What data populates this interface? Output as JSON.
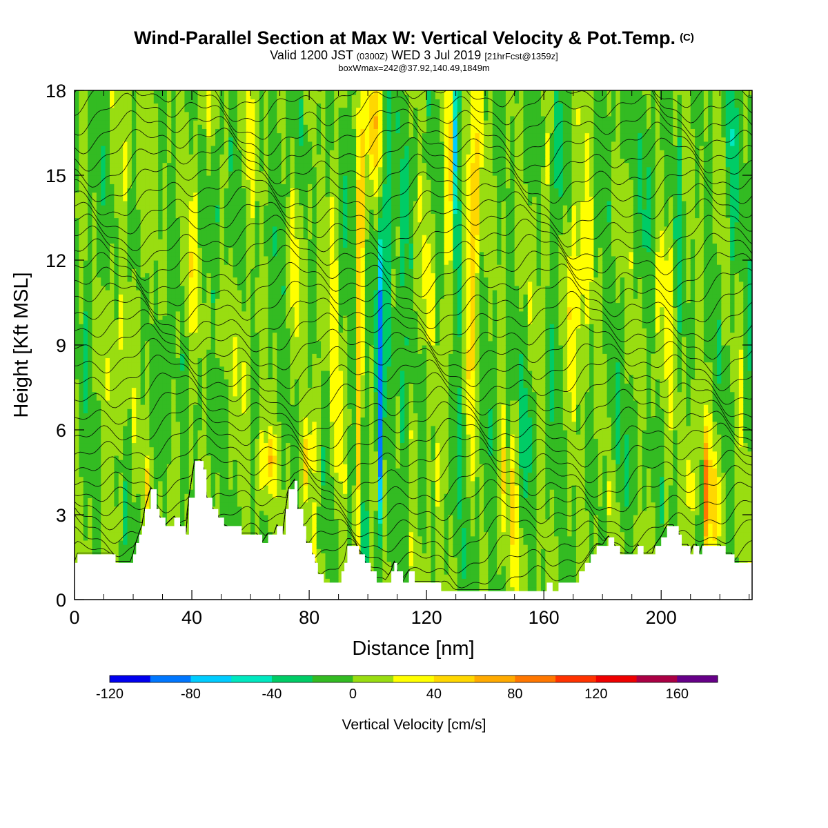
{
  "title": {
    "line1": "Wind-Parallel Section at Max W: Vertical Velocity & Pot.Temp.",
    "copyright_mark": "(C)",
    "line2_a": "Valid 1200 JST",
    "line2_b": "(0300Z)",
    "line2_c": "WED 3 Jul 2019",
    "line2_d": "[21hrFcst@1359z]",
    "line3": "boxWmax=242@37.92,140.49,1849m"
  },
  "chart_data": {
    "type": "heatmap",
    "xlabel": "Distance [nm]",
    "ylabel": "Height [Kft MSL]",
    "xlim": [
      0,
      231
    ],
    "ylim": [
      0,
      18
    ],
    "x_ticks": [
      0,
      40,
      80,
      120,
      160,
      200
    ],
    "y_ticks": [
      0,
      3,
      6,
      9,
      12,
      15,
      18
    ],
    "x_tick_labels": [
      "0",
      "40",
      "80",
      "120",
      "160",
      "200"
    ],
    "y_tick_labels": [
      "0",
      "3",
      "6",
      "9",
      "12",
      "15",
      "18"
    ],
    "value_label": "Vertical Velocity [cm/s]",
    "colorbar": {
      "levels": [
        -120,
        -100,
        -80,
        -60,
        -40,
        -20,
        0,
        20,
        40,
        60,
        80,
        100,
        120,
        140,
        160,
        180
      ],
      "tick_values": [
        -120,
        -80,
        -40,
        0,
        40,
        80,
        120,
        160
      ],
      "tick_labels": [
        "-120",
        "-80",
        "-40",
        "0",
        "40",
        "80",
        "120",
        "160"
      ],
      "colors": [
        "#0000ee",
        "#0077ff",
        "#00ccff",
        "#00e8c0",
        "#00cc66",
        "#33bb22",
        "#99dd11",
        "#ffff00",
        "#ffd700",
        "#ffaa00",
        "#ff7700",
        "#ff3300",
        "#ee0000",
        "#aa0044",
        "#660088"
      ]
    },
    "terrain_kft": [
      [
        0,
        1.3
      ],
      [
        1,
        1.6
      ],
      [
        13,
        1.6
      ],
      [
        14,
        1.3
      ],
      [
        19,
        1.3
      ],
      [
        20,
        1.6
      ],
      [
        21,
        2.0
      ],
      [
        22,
        2.3
      ],
      [
        23,
        2.6
      ],
      [
        24,
        3.2
      ],
      [
        26,
        3.9
      ],
      [
        28,
        3.2
      ],
      [
        29,
        2.9
      ],
      [
        31,
        2.6
      ],
      [
        34,
        2.9
      ],
      [
        36,
        2.6
      ],
      [
        38,
        2.3
      ],
      [
        39,
        3.6
      ],
      [
        41,
        4.9
      ],
      [
        43,
        4.9
      ],
      [
        44,
        4.6
      ],
      [
        45,
        3.6
      ],
      [
        47,
        3.2
      ],
      [
        49,
        2.9
      ],
      [
        51,
        2.6
      ],
      [
        57,
        2.3
      ],
      [
        60,
        2.3
      ],
      [
        62,
        2.3
      ],
      [
        64,
        2.0
      ],
      [
        66,
        2.3
      ],
      [
        68,
        2.3
      ],
      [
        69,
        2.6
      ],
      [
        71,
        2.3
      ],
      [
        72,
        3.2
      ],
      [
        73,
        3.9
      ],
      [
        75,
        4.2
      ],
      [
        76,
        3.2
      ],
      [
        78,
        2.6
      ],
      [
        79,
        2.0
      ],
      [
        81,
        1.6
      ],
      [
        82,
        1.3
      ],
      [
        83,
        0.9
      ],
      [
        85,
        0.6
      ],
      [
        90,
        0.6
      ],
      [
        91,
        1.0
      ],
      [
        92,
        1.3
      ],
      [
        93,
        1.9
      ],
      [
        96,
        1.9
      ],
      [
        97,
        1.6
      ],
      [
        99,
        1.3
      ],
      [
        101,
        1.0
      ],
      [
        103,
        0.6
      ],
      [
        106,
        0.6
      ],
      [
        108,
        1.0
      ],
      [
        109,
        1.3
      ],
      [
        110,
        1.0
      ],
      [
        112,
        0.6
      ],
      [
        114,
        1.0
      ],
      [
        116,
        0.6
      ],
      [
        118,
        0.6
      ],
      [
        120,
        0.6
      ],
      [
        122,
        0.6
      ],
      [
        124,
        0.6
      ],
      [
        125,
        0.3
      ],
      [
        160,
        0.3
      ],
      [
        161,
        0.6
      ],
      [
        163,
        0.3
      ],
      [
        165,
        0.6
      ],
      [
        167,
        0.6
      ],
      [
        168,
        0.6
      ],
      [
        170,
        0.6
      ],
      [
        172,
        1.0
      ],
      [
        174,
        1.3
      ],
      [
        176,
        1.6
      ],
      [
        178,
        1.9
      ],
      [
        180,
        1.9
      ],
      [
        182,
        2.2
      ],
      [
        184,
        1.9
      ],
      [
        186,
        1.6
      ],
      [
        190,
        1.6
      ],
      [
        192,
        1.9
      ],
      [
        194,
        1.6
      ],
      [
        197,
        1.6
      ],
      [
        198,
        1.9
      ],
      [
        200,
        2.2
      ],
      [
        202,
        2.6
      ],
      [
        204,
        2.6
      ],
      [
        206,
        2.3
      ],
      [
        207,
        1.9
      ],
      [
        209,
        1.9
      ],
      [
        210,
        1.6
      ],
      [
        211,
        1.9
      ],
      [
        212,
        1.9
      ],
      [
        213,
        1.6
      ],
      [
        214,
        1.9
      ],
      [
        220,
        1.9
      ],
      [
        222,
        1.6
      ],
      [
        224,
        1.6
      ],
      [
        225,
        1.3
      ],
      [
        231,
        1.3
      ]
    ],
    "max_w_cm_s": 242,
    "max_w_location": "37.92,140.49",
    "max_w_height": "1849m"
  }
}
